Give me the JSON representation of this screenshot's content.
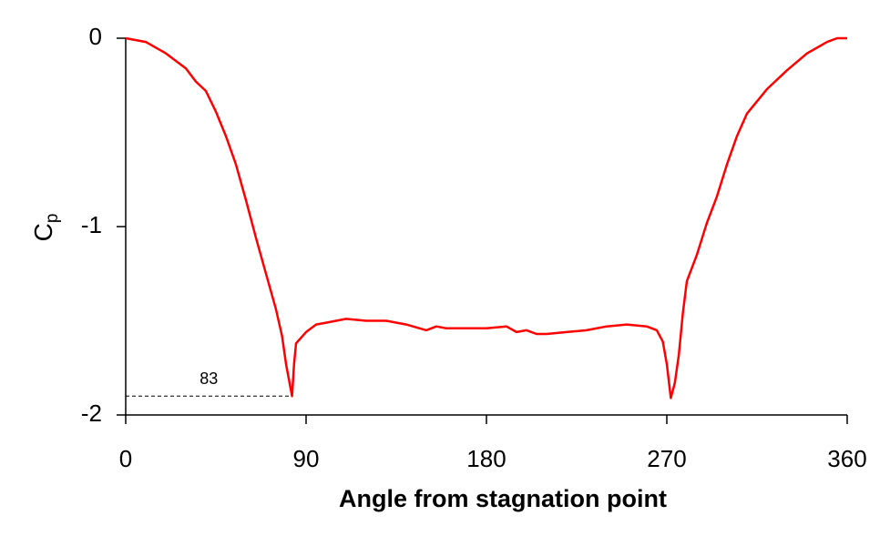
{
  "chart_data": {
    "type": "line",
    "xlabel": "Angle from stagnation point",
    "ylabel": {
      "text": "C",
      "subscript": "p"
    },
    "x": [
      0,
      10,
      20,
      30,
      35,
      40,
      45,
      50,
      55,
      60,
      65,
      70,
      75,
      78,
      80,
      83,
      84,
      85,
      90,
      95,
      100,
      110,
      120,
      130,
      140,
      150,
      155,
      160,
      170,
      180,
      190,
      195,
      200,
      205,
      210,
      220,
      230,
      240,
      250,
      260,
      265,
      268,
      270,
      272,
      274,
      276,
      278,
      280,
      285,
      290,
      295,
      300,
      305,
      310,
      320,
      330,
      340,
      350,
      355,
      360
    ],
    "series": [
      {
        "color": "#ff0000",
        "values": [
          0,
          -0.02,
          -0.08,
          -0.16,
          -0.23,
          -0.28,
          -0.39,
          -0.52,
          -0.67,
          -0.86,
          -1.06,
          -1.25,
          -1.44,
          -1.58,
          -1.73,
          -1.9,
          -1.73,
          -1.62,
          -1.56,
          -1.52,
          -1.51,
          -1.49,
          -1.5,
          -1.5,
          -1.52,
          -1.55,
          -1.53,
          -1.54,
          -1.54,
          -1.54,
          -1.53,
          -1.56,
          -1.55,
          -1.57,
          -1.57,
          -1.56,
          -1.55,
          -1.53,
          -1.52,
          -1.53,
          -1.55,
          -1.61,
          -1.73,
          -1.91,
          -1.83,
          -1.68,
          -1.46,
          -1.29,
          -1.15,
          -0.98,
          -0.84,
          -0.67,
          -0.52,
          -0.4,
          -0.27,
          -0.17,
          -0.08,
          -0.02,
          0,
          0
        ]
      }
    ],
    "xlim": [
      0,
      360
    ],
    "xticks": [
      0,
      90,
      180,
      270,
      360
    ],
    "ylim": [
      -2,
      0
    ],
    "yticks": [
      -2,
      -1,
      0
    ],
    "annotation": {
      "label": "83",
      "x": 83,
      "y": -1.9
    }
  }
}
